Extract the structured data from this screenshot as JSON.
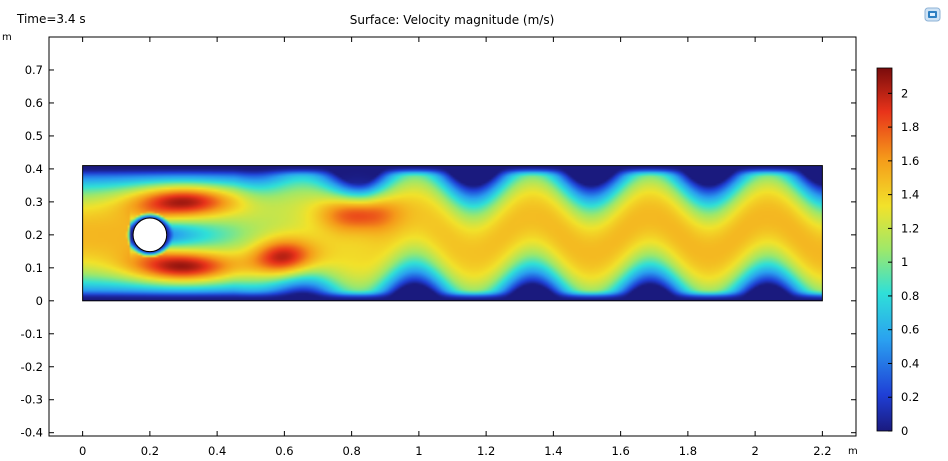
{
  "header": {
    "time_label": "Time=3.4 s",
    "title": "Surface: Velocity magnitude (m/s)",
    "y_unit": "m",
    "x_unit": "m"
  },
  "toolbar": {
    "icon": "window-restore-icon"
  },
  "chart_data": {
    "type": "heatmap",
    "title": "Surface: Velocity magnitude (m/s)",
    "time": "Time=3.4 s",
    "xlabel": "m",
    "ylabel": "m",
    "xlim": [
      -0.1,
      2.3
    ],
    "ylim": [
      -0.41,
      0.8
    ],
    "x_ticks": [
      "0",
      "0.2",
      "0.4",
      "0.6",
      "0.8",
      "1",
      "1.2",
      "1.4",
      "1.6",
      "1.8",
      "2",
      "2.2"
    ],
    "x_tick_values": [
      0,
      0.2,
      0.4,
      0.6,
      0.8,
      1,
      1.2,
      1.4,
      1.6,
      1.8,
      2,
      2.2
    ],
    "y_ticks": [
      "0.7",
      "0.6",
      "0.5",
      "0.4",
      "0.3",
      "0.2",
      "0.1",
      "0",
      "-0.1",
      "-0.2",
      "-0.3",
      "-0.4"
    ],
    "y_tick_values": [
      0.7,
      0.6,
      0.5,
      0.4,
      0.3,
      0.2,
      0.1,
      0,
      -0.1,
      -0.2,
      -0.3,
      -0.4
    ],
    "domain": {
      "x": [
        0,
        2.2
      ],
      "y": [
        0,
        0.41
      ]
    },
    "cylinder": {
      "center": [
        0.2,
        0.2
      ],
      "radius": 0.05
    },
    "colorbar": {
      "range": [
        0,
        2.15
      ],
      "ticks": [
        "0",
        "0.2",
        "0.4",
        "0.6",
        "0.8",
        "1",
        "1.2",
        "1.4",
        "1.6",
        "1.8",
        "2"
      ],
      "tick_values": [
        0,
        0.2,
        0.4,
        0.6,
        0.8,
        1,
        1.2,
        1.4,
        1.6,
        1.8,
        2
      ],
      "colormap": "rainbow"
    },
    "field": {
      "inflow_peak": 1.5,
      "wake_amplitude": 0.055,
      "wake_wavelength": 0.35,
      "high_speed_lobes": [
        {
          "x": 0.3,
          "y": 0.305,
          "value": 2.1
        },
        {
          "x": 0.3,
          "y": 0.1,
          "value": 2.1
        },
        {
          "x": 0.6,
          "y": 0.13,
          "value": 2.05
        },
        {
          "x": 0.82,
          "y": 0.27,
          "value": 2.0
        }
      ]
    }
  }
}
